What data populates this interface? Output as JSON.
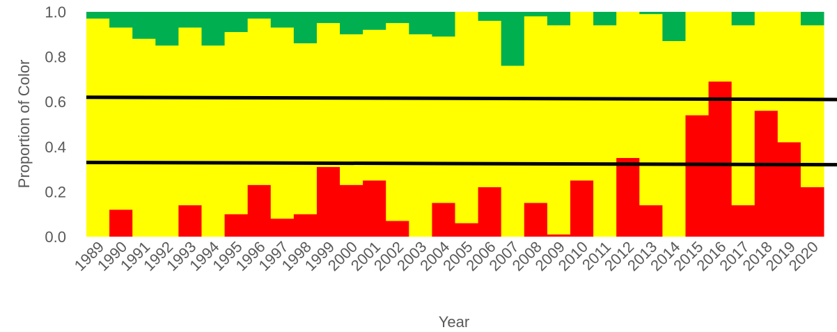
{
  "chart_data": {
    "type": "bar",
    "stacked": true,
    "xlabel": "Year",
    "ylabel": "Proportion of Color",
    "ylim": [
      0,
      1
    ],
    "yticks": [
      "0.0",
      "0.2",
      "0.4",
      "0.6",
      "0.8",
      "1.0"
    ],
    "grid": false,
    "legend": "none",
    "categories": [
      "1989",
      "1990",
      "1991",
      "1992",
      "1993",
      "1994",
      "1995",
      "1996",
      "1997",
      "1998",
      "1999",
      "2000",
      "2001",
      "2002",
      "2003",
      "2004",
      "2005",
      "2006",
      "2007",
      "2008",
      "2009",
      "2010",
      "2011",
      "2012",
      "2013",
      "2014",
      "2015",
      "2016",
      "2017",
      "2018",
      "2019",
      "2020"
    ],
    "series": [
      {
        "color": "#ff0000",
        "values": [
          0.0,
          0.12,
          0.0,
          0.0,
          0.14,
          0.0,
          0.1,
          0.23,
          0.08,
          0.1,
          0.31,
          0.23,
          0.25,
          0.07,
          0.0,
          0.15,
          0.06,
          0.22,
          0.0,
          0.15,
          0.01,
          0.25,
          0.0,
          0.35,
          0.14,
          0.0,
          0.54,
          0.69,
          0.14,
          0.56,
          0.42,
          0.22
        ]
      },
      {
        "color": "#ffff00",
        "values": [
          0.97,
          0.81,
          0.88,
          0.85,
          0.79,
          0.85,
          0.81,
          0.74,
          0.85,
          0.76,
          0.64,
          0.67,
          0.67,
          0.88,
          0.9,
          0.74,
          0.94,
          0.74,
          0.76,
          0.83,
          0.93,
          0.75,
          0.94,
          0.65,
          0.85,
          0.87,
          0.46,
          0.31,
          0.8,
          0.44,
          0.58,
          0.72
        ]
      },
      {
        "color": "#00b050",
        "values": [
          0.03,
          0.07,
          0.12,
          0.15,
          0.07,
          0.15,
          0.09,
          0.03,
          0.07,
          0.14,
          0.05,
          0.1,
          0.08,
          0.05,
          0.1,
          0.11,
          0.0,
          0.04,
          0.24,
          0.02,
          0.06,
          0.0,
          0.06,
          0.0,
          0.01,
          0.13,
          0.0,
          0.0,
          0.06,
          0.0,
          0.0,
          0.06
        ]
      }
    ],
    "reference_lines": [
      {
        "color": "#000000",
        "y_start": 0.62,
        "y_end": 0.61
      },
      {
        "color": "#000000",
        "y_start": 0.33,
        "y_end": 0.32
      }
    ]
  }
}
